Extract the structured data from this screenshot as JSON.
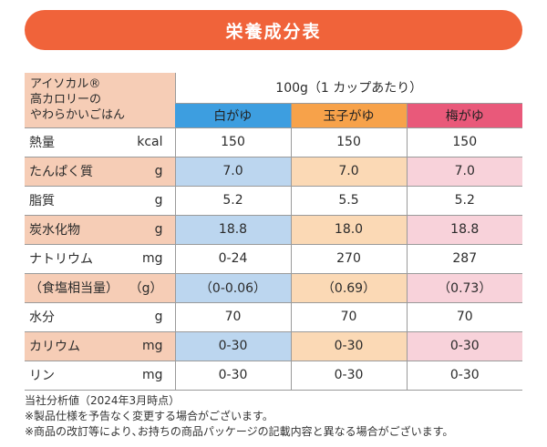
{
  "title": "栄養成分表",
  "product": {
    "brand_line": "アイソカル®",
    "name_line1": "高カロリーの",
    "name_line2": "やわらかいごはん"
  },
  "serving": "100g（1 カップあたり）",
  "flavors": [
    "白がゆ",
    "玉子がゆ",
    "梅がゆ"
  ],
  "flavor_colors": [
    "#3d9ee0",
    "#f7a24a",
    "#e9597a"
  ],
  "rows": [
    {
      "name": "熱量",
      "unit": "kcal",
      "values": [
        "150",
        "150",
        "150"
      ],
      "shaded": false
    },
    {
      "name": "たんぱく質",
      "unit": "g",
      "values": [
        "7.0",
        "7.0",
        "7.0"
      ],
      "shaded": true
    },
    {
      "name": "脂質",
      "unit": "g",
      "values": [
        "5.2",
        "5.5",
        "5.2"
      ],
      "shaded": false
    },
    {
      "name": "炭水化物",
      "unit": "g",
      "values": [
        "18.8",
        "18.0",
        "18.8"
      ],
      "shaded": true
    },
    {
      "name": "ナトリウム",
      "unit": "mg",
      "values": [
        "0-24",
        "270",
        "287"
      ],
      "shaded": false
    },
    {
      "name": "（食塩相当量）",
      "unit": "（g）",
      "values": [
        "（0-0.06）",
        "（0.69）",
        "（0.73）"
      ],
      "shaded": true
    },
    {
      "name": "水分",
      "unit": "g",
      "values": [
        "70",
        "70",
        "70"
      ],
      "shaded": false
    },
    {
      "name": "カリウム",
      "unit": "mg",
      "values": [
        "0-30",
        "0-30",
        "0-30"
      ],
      "shaded": true
    },
    {
      "name": "リン",
      "unit": "mg",
      "values": [
        "0-30",
        "0-30",
        "0-30"
      ],
      "shaded": false
    }
  ],
  "notes": [
    "当社分析値（2024年3月時点）",
    "※製品仕様を予告なく変更する場合がございます。",
    "※商品の改訂等により､お持ちの商品パッケージの記載内容と異なる場合がございます。"
  ],
  "colors": {
    "title_bar": "#f0633a",
    "label_shade": "#f6cdb6",
    "white_shade": "#bcd6ef",
    "tamago_shade": "#fbd9b5",
    "ume_shade": "#f8d2da"
  }
}
